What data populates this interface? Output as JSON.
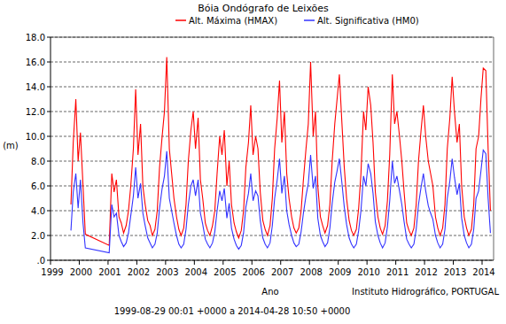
{
  "chart_data": {
    "type": "line",
    "title": "Bóia Ondógrafo de Leixões",
    "x_label": "Ano",
    "y_label": "(m)",
    "annotations": [
      "Instituto Hidrográfico, PORTUGAL",
      "1999-08-29 00:01 +0000 a 2014-04-28 10:50 +0000"
    ],
    "legend": "top",
    "grid": true,
    "xlim": [
      1999,
      2014.4
    ],
    "xticks": [
      1999,
      2000,
      2001,
      2002,
      2003,
      2004,
      2005,
      2006,
      2007,
      2008,
      2009,
      2010,
      2011,
      2012,
      2013,
      2014
    ],
    "ylim": [
      0,
      18
    ],
    "yticks": [
      {
        "value": 0,
        "label": ".0"
      },
      {
        "value": 2,
        "label": "2.0"
      },
      {
        "value": 4,
        "label": "4.0"
      },
      {
        "value": 6,
        "label": "6.0"
      },
      {
        "value": 8,
        "label": "8.0"
      },
      {
        "value": 10,
        "label": "10.0"
      },
      {
        "value": 12,
        "label": "12.0"
      },
      {
        "value": 14,
        "label": "14.0"
      },
      {
        "value": 16,
        "label": "16.0"
      },
      {
        "value": 18,
        "label": "18.0"
      }
    ],
    "x": [
      1999.71,
      1999.79,
      1999.88,
      1999.96,
      2000.04,
      2000.13,
      2000.21,
      2001.04,
      2001.13,
      2001.21,
      2001.29,
      2001.38,
      2001.46,
      2001.54,
      2001.63,
      2001.71,
      2001.79,
      2001.88,
      2001.96,
      2002.04,
      2002.13,
      2002.21,
      2002.29,
      2002.38,
      2002.46,
      2002.54,
      2002.63,
      2002.71,
      2002.79,
      2002.88,
      2002.96,
      2003.04,
      2003.13,
      2003.21,
      2003.29,
      2003.38,
      2003.46,
      2003.54,
      2003.63,
      2003.71,
      2003.79,
      2003.88,
      2003.96,
      2004.04,
      2004.13,
      2004.21,
      2004.29,
      2004.38,
      2004.46,
      2004.54,
      2004.63,
      2004.71,
      2004.79,
      2004.88,
      2004.96,
      2005.04,
      2005.13,
      2005.21,
      2005.29,
      2005.38,
      2005.46,
      2005.54,
      2005.63,
      2005.71,
      2005.79,
      2005.88,
      2005.96,
      2006.04,
      2006.13,
      2006.21,
      2006.29,
      2006.38,
      2006.46,
      2006.54,
      2006.63,
      2006.71,
      2006.79,
      2006.88,
      2006.96,
      2007.04,
      2007.13,
      2007.21,
      2007.29,
      2007.38,
      2007.46,
      2007.54,
      2007.63,
      2007.71,
      2007.79,
      2007.88,
      2007.96,
      2008.04,
      2008.13,
      2008.21,
      2008.29,
      2008.38,
      2008.46,
      2008.54,
      2008.63,
      2008.71,
      2008.79,
      2008.88,
      2008.96,
      2009.04,
      2009.13,
      2009.21,
      2009.29,
      2009.38,
      2009.46,
      2009.54,
      2009.63,
      2009.71,
      2009.79,
      2009.88,
      2009.96,
      2010.04,
      2010.13,
      2010.21,
      2010.29,
      2010.38,
      2010.46,
      2010.54,
      2010.63,
      2010.71,
      2010.79,
      2010.88,
      2010.96,
      2011.04,
      2011.13,
      2011.21,
      2011.29,
      2011.38,
      2011.46,
      2011.54,
      2011.63,
      2011.71,
      2011.79,
      2011.88,
      2011.96,
      2012.04,
      2012.13,
      2012.21,
      2012.29,
      2012.38,
      2012.46,
      2012.54,
      2012.63,
      2012.71,
      2012.79,
      2012.88,
      2012.96,
      2013.04,
      2013.13,
      2013.21,
      2013.29,
      2013.38,
      2013.46,
      2013.54,
      2013.63,
      2013.71,
      2013.79,
      2013.88,
      2013.96,
      2014.04,
      2014.13,
      2014.21,
      2014.29
    ],
    "series": [
      {
        "name": "Alt. Máxima (HMAX)",
        "color": "#ff0000",
        "values": [
          4.5,
          9.5,
          13.0,
          8.0,
          10.3,
          6.0,
          2.1,
          1.2,
          7.0,
          5.5,
          6.5,
          3.5,
          3.0,
          2.2,
          2.8,
          4.0,
          6.0,
          9.0,
          13.8,
          8.5,
          11.0,
          6.0,
          4.5,
          3.2,
          2.8,
          2.0,
          2.5,
          4.0,
          7.5,
          10.0,
          12.0,
          16.4,
          9.0,
          7.0,
          5.0,
          3.5,
          2.5,
          2.0,
          2.6,
          4.5,
          8.0,
          10.5,
          12.0,
          9.0,
          11.5,
          6.5,
          5.0,
          3.0,
          2.4,
          2.0,
          2.8,
          4.0,
          7.0,
          10.0,
          8.5,
          10.5,
          6.0,
          8.0,
          4.5,
          3.0,
          2.3,
          1.8,
          2.4,
          4.0,
          7.5,
          9.5,
          12.5,
          8.5,
          10.0,
          9.0,
          5.5,
          3.2,
          2.5,
          2.0,
          2.8,
          5.0,
          9.0,
          11.5,
          14.5,
          9.5,
          12.0,
          7.0,
          5.0,
          3.5,
          2.6,
          2.2,
          2.6,
          4.0,
          6.5,
          9.0,
          11.0,
          16.0,
          10.0,
          12.0,
          6.0,
          3.5,
          2.8,
          2.2,
          2.8,
          4.5,
          8.0,
          11.0,
          13.0,
          15.0,
          11.0,
          7.5,
          5.0,
          3.2,
          2.4,
          2.0,
          2.5,
          4.2,
          7.0,
          12.0,
          10.5,
          14.0,
          12.5,
          9.5,
          5.5,
          3.5,
          2.6,
          2.1,
          2.8,
          4.8,
          8.5,
          15.0,
          11.0,
          12.0,
          10.0,
          8.0,
          5.5,
          3.0,
          2.4,
          2.0,
          2.6,
          4.5,
          8.0,
          10.5,
          12.5,
          10.0,
          8.0,
          7.0,
          6.0,
          3.5,
          2.6,
          2.0,
          2.6,
          4.5,
          9.0,
          11.5,
          14.8,
          12.0,
          9.5,
          11.0,
          6.0,
          3.5,
          2.6,
          2.0,
          2.5,
          4.5,
          9.0,
          10.0,
          13.0,
          15.5,
          15.3,
          9.0,
          4.0
        ]
      },
      {
        "name": "Alt. Significativa (HM0)",
        "color": "#3333ff",
        "values": [
          2.4,
          5.5,
          7.0,
          4.2,
          6.5,
          3.0,
          1.0,
          0.6,
          4.5,
          3.5,
          3.8,
          2.0,
          1.5,
          1.1,
          1.4,
          2.2,
          3.6,
          5.2,
          7.5,
          5.0,
          6.2,
          3.8,
          2.8,
          1.8,
          1.4,
          1.0,
          1.3,
          2.2,
          4.2,
          5.8,
          6.8,
          8.8,
          5.0,
          4.0,
          3.0,
          2.0,
          1.3,
          1.0,
          1.3,
          2.5,
          4.5,
          6.0,
          6.5,
          5.2,
          6.5,
          3.8,
          2.9,
          1.7,
          1.3,
          1.0,
          1.4,
          2.3,
          4.0,
          5.6,
          4.8,
          5.8,
          3.4,
          4.6,
          2.6,
          1.7,
          1.2,
          0.9,
          1.2,
          2.2,
          4.3,
          5.4,
          7.0,
          4.8,
          5.6,
          5.2,
          3.2,
          1.8,
          1.3,
          1.0,
          1.4,
          2.8,
          5.0,
          6.5,
          8.2,
          5.4,
          6.8,
          4.0,
          2.9,
          2.0,
          1.4,
          1.1,
          1.3,
          2.3,
          3.8,
          5.2,
          6.2,
          8.5,
          5.8,
          6.8,
          3.4,
          2.0,
          1.5,
          1.1,
          1.4,
          2.6,
          4.6,
          6.3,
          7.2,
          8.2,
          6.2,
          4.3,
          2.9,
          1.8,
          1.3,
          1.0,
          1.3,
          2.4,
          4.0,
          6.8,
          6.0,
          7.8,
          7.0,
          5.4,
          3.1,
          2.0,
          1.4,
          1.0,
          1.4,
          2.7,
          4.8,
          8.0,
          6.2,
          6.8,
          5.6,
          4.5,
          3.1,
          1.7,
          1.3,
          1.0,
          1.3,
          2.5,
          4.5,
          5.9,
          7.0,
          5.6,
          4.4,
          3.8,
          3.3,
          2.0,
          1.4,
          1.0,
          1.3,
          2.5,
          5.0,
          6.4,
          8.2,
          6.7,
          5.3,
          6.2,
          3.4,
          2.0,
          1.4,
          1.0,
          1.3,
          2.5,
          5.0,
          5.6,
          7.2,
          8.9,
          8.6,
          5.0,
          2.2
        ]
      }
    ]
  }
}
